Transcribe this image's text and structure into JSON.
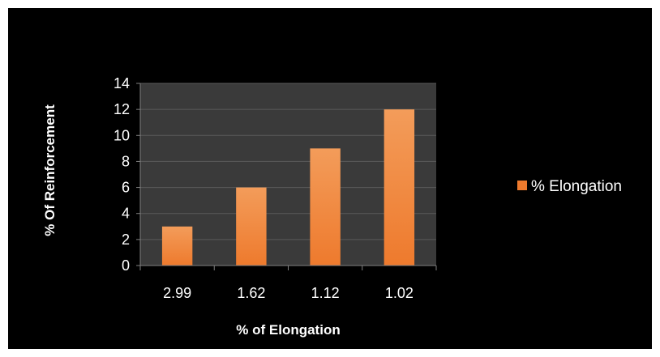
{
  "chart_data": {
    "type": "bar",
    "title": "",
    "xlabel": "% of Elongation",
    "ylabel": "% Of Reinforcement",
    "categories": [
      "2.99",
      "1.62",
      "1.12",
      "1.02"
    ],
    "series": [
      {
        "name": "% Elongation",
        "values": [
          3,
          6,
          9,
          12
        ]
      }
    ],
    "ylim": [
      0,
      14
    ],
    "yticks": [
      0,
      2,
      4,
      6,
      8,
      10,
      12,
      14
    ],
    "grid": true,
    "legend": "right",
    "colors": {
      "background": "#000000",
      "plot_area": "#3a3a3a",
      "gridline": "#5a5a5a",
      "bar": "#ee7a2d",
      "bar_light": "#f39c5a",
      "text": "#ffffff"
    }
  }
}
